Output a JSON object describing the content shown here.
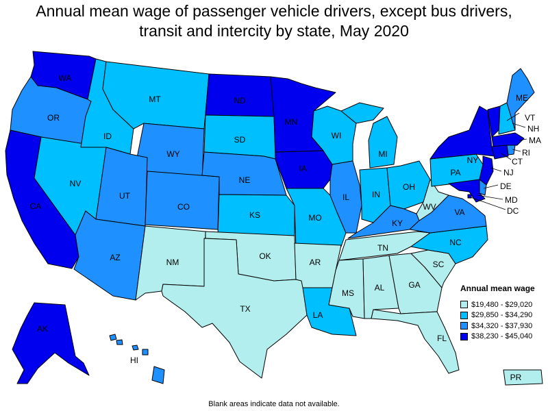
{
  "title": {
    "line1": "Annual mean wage of passenger vehicle drivers, except bus drivers,",
    "line2": "transit and intercity by state, May 2020"
  },
  "colors": {
    "tier1": "#b2eeee",
    "tier2": "#00bfff",
    "tier3": "#1e90ff",
    "tier4": "#0000ee",
    "border": "#000000"
  },
  "legend": {
    "title": "Annual mean wage",
    "items": [
      {
        "label": "$19,480 - $29,020",
        "tier": "tier1"
      },
      {
        "label": "$29,850 - $34,290",
        "tier": "tier2"
      },
      {
        "label": "$34,320 - $37,930",
        "tier": "tier3"
      },
      {
        "label": "$38,230 - $45,040",
        "tier": "tier4"
      }
    ]
  },
  "states": [
    {
      "abbr": "WA",
      "tier": "tier4"
    },
    {
      "abbr": "OR",
      "tier": "tier3"
    },
    {
      "abbr": "CA",
      "tier": "tier4"
    },
    {
      "abbr": "NV",
      "tier": "tier2"
    },
    {
      "abbr": "ID",
      "tier": "tier2"
    },
    {
      "abbr": "MT",
      "tier": "tier2"
    },
    {
      "abbr": "WY",
      "tier": "tier3"
    },
    {
      "abbr": "UT",
      "tier": "tier3"
    },
    {
      "abbr": "AZ",
      "tier": "tier3"
    },
    {
      "abbr": "CO",
      "tier": "tier3"
    },
    {
      "abbr": "NM",
      "tier": "tier1"
    },
    {
      "abbr": "ND",
      "tier": "tier4"
    },
    {
      "abbr": "SD",
      "tier": "tier2"
    },
    {
      "abbr": "NE",
      "tier": "tier3"
    },
    {
      "abbr": "KS",
      "tier": "tier2"
    },
    {
      "abbr": "OK",
      "tier": "tier1"
    },
    {
      "abbr": "TX",
      "tier": "tier1"
    },
    {
      "abbr": "MN",
      "tier": "tier4"
    },
    {
      "abbr": "IA",
      "tier": "tier4"
    },
    {
      "abbr": "MO",
      "tier": "tier2"
    },
    {
      "abbr": "AR",
      "tier": "tier1"
    },
    {
      "abbr": "LA",
      "tier": "tier2"
    },
    {
      "abbr": "WI",
      "tier": "tier2"
    },
    {
      "abbr": "IL",
      "tier": "tier3"
    },
    {
      "abbr": "MI",
      "tier": "tier2"
    },
    {
      "abbr": "IN",
      "tier": "tier2"
    },
    {
      "abbr": "OH",
      "tier": "tier2"
    },
    {
      "abbr": "KY",
      "tier": "tier3"
    },
    {
      "abbr": "TN",
      "tier": "tier1"
    },
    {
      "abbr": "MS",
      "tier": "tier1"
    },
    {
      "abbr": "AL",
      "tier": "tier1"
    },
    {
      "abbr": "GA",
      "tier": "tier1"
    },
    {
      "abbr": "FL",
      "tier": "tier1"
    },
    {
      "abbr": "SC",
      "tier": "tier1"
    },
    {
      "abbr": "NC",
      "tier": "tier2"
    },
    {
      "abbr": "VA",
      "tier": "tier3"
    },
    {
      "abbr": "WV",
      "tier": "tier1"
    },
    {
      "abbr": "PA",
      "tier": "tier2"
    },
    {
      "abbr": "NY",
      "tier": "tier4"
    },
    {
      "abbr": "VT",
      "tier": "tier4"
    },
    {
      "abbr": "NH",
      "tier": "tier2"
    },
    {
      "abbr": "ME",
      "tier": "tier3"
    },
    {
      "abbr": "MA",
      "tier": "tier4"
    },
    {
      "abbr": "RI",
      "tier": "tier3"
    },
    {
      "abbr": "CT",
      "tier": "tier4"
    },
    {
      "abbr": "NJ",
      "tier": "tier4"
    },
    {
      "abbr": "DE",
      "tier": "tier3"
    },
    {
      "abbr": "MD",
      "tier": "tier4"
    },
    {
      "abbr": "DC",
      "tier": "tier4"
    },
    {
      "abbr": "AK",
      "tier": "tier4"
    },
    {
      "abbr": "HI",
      "tier": "tier3"
    },
    {
      "abbr": "PR",
      "tier": "tier1"
    }
  ],
  "footnote": "Blank areas indicate data not available."
}
